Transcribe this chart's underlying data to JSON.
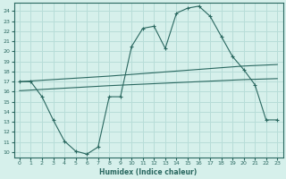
{
  "xlabel": "Humidex (Indice chaleur)",
  "bg_color": "#d6f0eb",
  "grid_color": "#b8ddd8",
  "line_color": "#2a6860",
  "plot_bg": "#d6f0eb",
  "xlim": [
    -0.5,
    23.5
  ],
  "ylim": [
    9.5,
    24.8
  ],
  "xticks": [
    0,
    1,
    2,
    3,
    4,
    5,
    6,
    7,
    8,
    9,
    10,
    11,
    12,
    13,
    14,
    15,
    16,
    17,
    18,
    19,
    20,
    21,
    22,
    23
  ],
  "yticks": [
    10,
    11,
    12,
    13,
    14,
    15,
    16,
    17,
    18,
    19,
    20,
    21,
    22,
    23,
    24
  ],
  "series1_x": [
    0,
    1,
    2,
    3,
    4,
    5,
    6,
    7,
    8,
    9,
    10,
    11,
    12,
    13,
    14,
    15,
    16,
    17,
    18,
    19,
    20,
    21,
    22,
    23
  ],
  "series1_y": [
    17.0,
    17.0,
    15.5,
    13.2,
    11.1,
    10.1,
    9.8,
    10.5,
    15.5,
    15.5,
    20.5,
    22.3,
    22.5,
    20.3,
    23.8,
    24.3,
    24.5,
    23.5,
    21.5,
    19.5,
    18.2,
    16.7,
    13.2,
    13.2
  ],
  "series2_x": [
    0,
    8,
    20,
    23
  ],
  "series2_y": [
    17.0,
    17.55,
    18.55,
    18.7
  ],
  "series3_x": [
    0,
    8,
    20,
    23
  ],
  "series3_y": [
    16.1,
    16.6,
    17.2,
    17.3
  ],
  "marker_x1": [
    0,
    2,
    5,
    6,
    7,
    8,
    10,
    11,
    13,
    14,
    15,
    16,
    17,
    18,
    20,
    21,
    22,
    23
  ],
  "marker_y1": [
    17.0,
    15.5,
    10.1,
    9.8,
    10.5,
    15.5,
    20.5,
    22.3,
    20.3,
    23.8,
    24.3,
    24.5,
    23.5,
    21.5,
    18.2,
    16.7,
    13.2,
    13.2
  ]
}
